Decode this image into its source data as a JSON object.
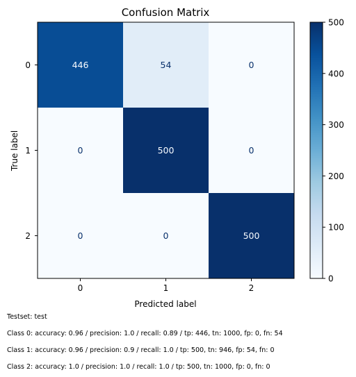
{
  "chart_data": {
    "type": "heatmap",
    "title": "Confusion Matrix",
    "xlabel": "Predicted label",
    "ylabel": "True label",
    "x_categories": [
      "0",
      "1",
      "2"
    ],
    "y_categories": [
      "0",
      "1",
      "2"
    ],
    "matrix": [
      [
        446,
        54,
        0
      ],
      [
        0,
        500,
        0
      ],
      [
        0,
        0,
        500
      ]
    ],
    "colormap": "Blues",
    "colorbar": {
      "min": 0,
      "max": 500,
      "ticks": [
        0,
        100,
        200,
        300,
        400,
        500
      ]
    }
  },
  "footnotes": {
    "testset": "Testset: test",
    "class0": "Class 0: accuracy: 0.96 / precision: 1.0 / recall: 0.89 / tp: 446, tn: 1000, fp: 0, fn: 54",
    "class1": "Class 1: accuracy: 0.96 / precision: 0.9 / recall: 1.0 / tp: 500, tn: 946, fp: 54, fn: 0",
    "class2": "Class 2: accuracy: 1.0 / precision: 1.0 / recall: 1.0 / tp: 500, tn: 1000, fp: 0, fn: 0"
  }
}
